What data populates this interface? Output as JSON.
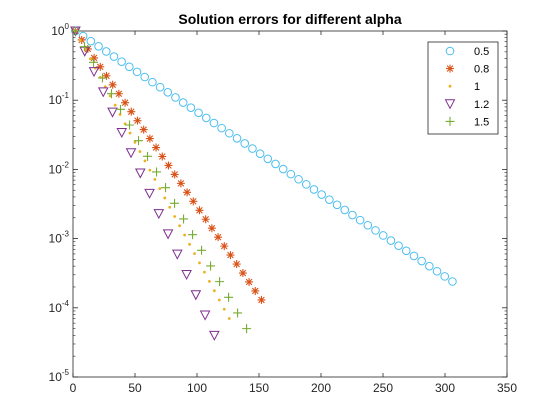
{
  "chart_data": {
    "type": "scatter",
    "title": "Solution errors for different alpha",
    "xlabel": "",
    "ylabel": "",
    "xlim": [
      0,
      350
    ],
    "ylim": [
      1e-05,
      1
    ],
    "yscale": "log",
    "x_ticks": [
      "0",
      "50",
      "100",
      "150",
      "200",
      "250",
      "300",
      "350"
    ],
    "y_ticks": [
      {
        "base": "10",
        "exp": "0"
      },
      {
        "base": "10",
        "exp": "-1"
      },
      {
        "base": "10",
        "exp": "-2"
      },
      {
        "base": "10",
        "exp": "-3"
      },
      {
        "base": "10",
        "exp": "-4"
      },
      {
        "base": "10",
        "exp": "-5"
      }
    ],
    "grid": false,
    "legend_position": "top-right",
    "series": [
      {
        "name": "0.5",
        "marker": "circle",
        "color": "#4DBEEE",
        "x_start": 2,
        "x_end": 306,
        "points": 50,
        "y_start": 1.0,
        "y_end": 0.00024
      },
      {
        "name": "0.8",
        "marker": "asterisk",
        "color": "#D95319",
        "x_start": 2,
        "x_end": 152,
        "points": 31,
        "y_start": 1.0,
        "y_end": 0.00013
      },
      {
        "name": "1",
        "marker": "point",
        "color": "#EDB120",
        "x_start": 2,
        "x_end": 126,
        "points": 32,
        "y_start": 1.0,
        "y_end": 7e-05
      },
      {
        "name": "1.2",
        "marker": "triangle-down",
        "color": "#7E2F8E",
        "x_start": 2,
        "x_end": 114,
        "points": 16,
        "y_start": 1.0,
        "y_end": 4e-05
      },
      {
        "name": "1.5",
        "marker": "plus",
        "color": "#77AC30",
        "x_start": 2,
        "x_end": 140,
        "points": 20,
        "y_start": 1.0,
        "y_end": 5e-05
      }
    ]
  }
}
